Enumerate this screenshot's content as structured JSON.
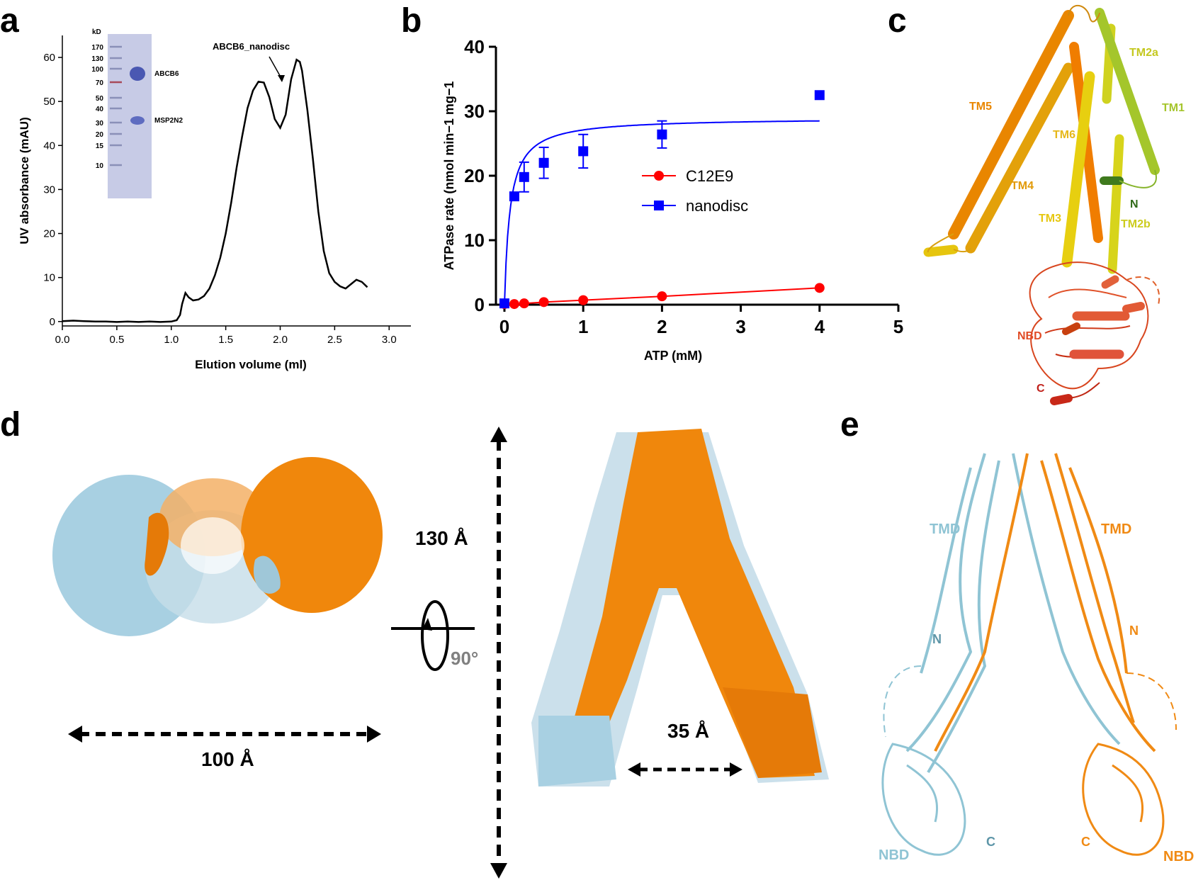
{
  "panel_labels": {
    "a": "a",
    "b": "b",
    "c": "c",
    "d": "d",
    "e": "e"
  },
  "chart_data": [
    {
      "panel": "a",
      "type": "line",
      "title": "",
      "xlabel": "Elution volume (ml)",
      "ylabel": "UV absorbance (mAU)",
      "xlim": [
        0,
        3.2
      ],
      "ylim": [
        -1,
        65
      ],
      "xticks": [
        "0.0",
        "0.5",
        "1.0",
        "1.5",
        "2.0",
        "2.5",
        "3.0"
      ],
      "yticks": [
        "0",
        "10",
        "20",
        "30",
        "40",
        "50",
        "60"
      ],
      "annotation": "ABCB6_nanodisc",
      "series": [
        {
          "x": [
            0.0,
            0.1,
            0.2,
            0.3,
            0.4,
            0.5,
            0.6,
            0.7,
            0.8,
            0.9,
            1.0,
            1.05,
            1.08,
            1.1,
            1.13,
            1.16,
            1.2,
            1.25,
            1.3,
            1.35,
            1.4,
            1.45,
            1.5,
            1.55,
            1.6,
            1.65,
            1.7,
            1.75,
            1.8,
            1.85,
            1.9,
            1.95,
            2.0,
            2.05,
            2.1,
            2.15,
            2.18,
            2.2,
            2.25,
            2.3,
            2.35,
            2.4,
            2.45,
            2.5,
            2.55,
            2.6,
            2.65,
            2.7,
            2.75,
            2.8
          ],
          "y": [
            0.1,
            0.2,
            0.1,
            0.0,
            0.0,
            -0.1,
            0.0,
            -0.1,
            0.0,
            -0.1,
            0.0,
            0.3,
            1.5,
            4.0,
            6.5,
            5.5,
            4.8,
            5.0,
            5.8,
            7.5,
            10.5,
            14.5,
            20.0,
            27.0,
            35.0,
            42.0,
            48.5,
            52.5,
            54.5,
            54.3,
            51.0,
            46.0,
            44.0,
            47.0,
            55.0,
            59.5,
            59.0,
            57.0,
            48.0,
            37.0,
            25.0,
            16.0,
            11.0,
            9.0,
            8.0,
            7.5,
            8.5,
            9.5,
            9.0,
            7.8
          ]
        }
      ],
      "inset_gel": {
        "unit": "kD",
        "markers": [
          "170",
          "130",
          "100",
          "70",
          "50",
          "40",
          "30",
          "20",
          "15",
          "10"
        ],
        "bands": [
          "ABCB6",
          "MSP2N2"
        ]
      }
    },
    {
      "panel": "b",
      "type": "scatter",
      "title": "",
      "xlabel": "ATP (mM)",
      "ylabel": "ATPase rate (nmol min−1 mg−1",
      "xlim": [
        0,
        5
      ],
      "ylim": [
        0,
        40
      ],
      "xticks": [
        "0",
        "1",
        "2",
        "3",
        "4",
        "5"
      ],
      "yticks": [
        "0",
        "10",
        "20",
        "30",
        "40"
      ],
      "series": [
        {
          "name": "C12E9",
          "color": "#ff0000",
          "marker": "circle",
          "x": [
            0,
            0.125,
            0.25,
            0.5,
            1,
            2,
            4
          ],
          "y": [
            0.1,
            0.1,
            0.2,
            0.4,
            0.7,
            1.3,
            2.6
          ]
        },
        {
          "name": "nanodisc",
          "color": "#0000ff",
          "marker": "square",
          "x": [
            0,
            0.125,
            0.25,
            0.5,
            1,
            2,
            4
          ],
          "y": [
            0.2,
            16.8,
            19.8,
            22.0,
            23.8,
            26.4,
            32.5
          ],
          "err": [
            0,
            0,
            2.3,
            2.4,
            2.6,
            2.1,
            0
          ]
        }
      ],
      "fit_michaelis_menten": {
        "vmax": 29.0,
        "km": 0.07
      }
    }
  ],
  "panel_c": {
    "labels": [
      "TM2a",
      "TM1",
      "TM5",
      "TM6",
      "TM4",
      "N",
      "TM3",
      "TM2b",
      "NBD",
      "C"
    ],
    "colors": {
      "tm_yellow": "#e6d21a",
      "tm_orange": "#f08a00",
      "tm_green": "#a6c92c",
      "nbd": "#e4532c"
    }
  },
  "panel_d": {
    "width_label": "100 Å",
    "height_label": "130 Å",
    "gap_label": "35 Å",
    "rotation_label": "90°",
    "colors": {
      "chain_a": "#a8d0e2",
      "chain_b": "#f0870c"
    }
  },
  "panel_e": {
    "left": {
      "tmd": "TMD",
      "n": "N",
      "nbd": "NBD",
      "c": "C",
      "color": "#8fc4d4"
    },
    "right": {
      "tmd": "TMD",
      "n": "N",
      "nbd": "NBD",
      "c": "C",
      "color": "#f08a14"
    }
  }
}
